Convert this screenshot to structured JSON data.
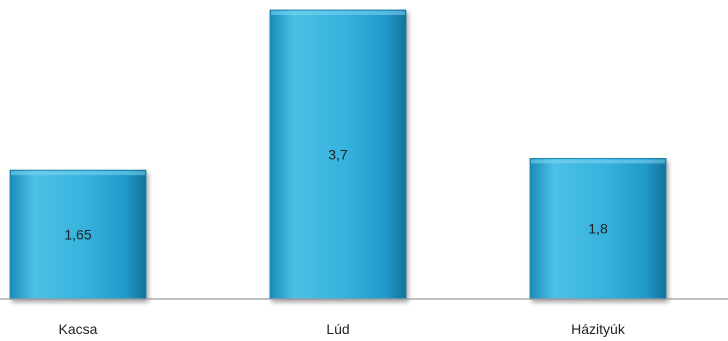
{
  "chart_data": {
    "type": "bar",
    "categories": [
      "Kacsa",
      "Lúd",
      "Házityúk"
    ],
    "values": [
      1.65,
      3.7,
      1.8
    ],
    "value_labels": [
      "1,65",
      "3,7",
      "1,8"
    ],
    "ylim": [
      0,
      3.7
    ],
    "grid": false,
    "legend": "none",
    "colors": {
      "bar_light": "#4fc3e6",
      "bar_mid": "#29a9d6",
      "bar_dark": "#1785b0",
      "axis": "#9a9a9a"
    }
  }
}
